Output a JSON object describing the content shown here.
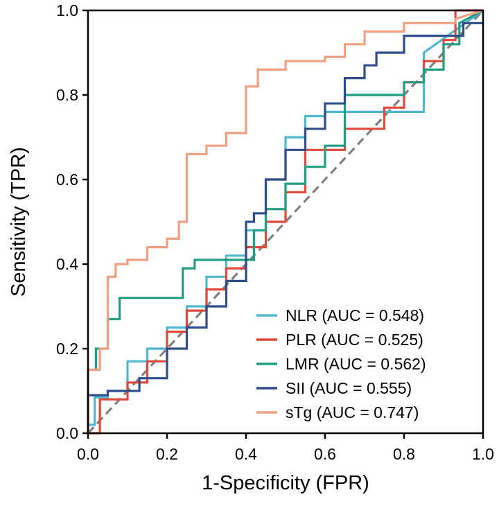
{
  "chart_data": {
    "type": "line",
    "title": "",
    "xlabel": "1-Specificity (FPR)",
    "ylabel": "Sensitivity (TPR)",
    "xlim": [
      0.0,
      1.0
    ],
    "ylim": [
      0.0,
      1.0
    ],
    "xticks": [
      "0.0",
      "0.2",
      "0.4",
      "0.6",
      "0.8",
      "1.0"
    ],
    "yticks": [
      "0.0",
      "0.2",
      "0.4",
      "0.6",
      "0.8",
      "1.0"
    ],
    "grid": false,
    "legend_position": "bottom-right",
    "diagonal": {
      "x": [
        0,
        1
      ],
      "y": [
        0,
        1
      ],
      "color": "#808080",
      "style": "dashed"
    },
    "series": [
      {
        "name": "NLR",
        "legend_label": "NLR (AUC = 0.548)",
        "color": "#4fb8d1",
        "x": [
          0,
          0,
          0.017,
          0.017,
          0.05,
          0.05,
          0.1,
          0.1,
          0.15,
          0.15,
          0.2,
          0.2,
          0.25,
          0.25,
          0.3,
          0.3,
          0.35,
          0.35,
          0.4,
          0.4,
          0.45,
          0.45,
          0.5,
          0.5,
          0.55,
          0.55,
          0.6,
          0.6,
          0.85,
          0.85,
          1.0
        ],
        "y": [
          0,
          0.02,
          0.02,
          0.085,
          0.085,
          0.1,
          0.1,
          0.17,
          0.17,
          0.2,
          0.2,
          0.25,
          0.25,
          0.3,
          0.3,
          0.37,
          0.37,
          0.42,
          0.42,
          0.48,
          0.48,
          0.6,
          0.6,
          0.7,
          0.7,
          0.75,
          0.75,
          0.76,
          0.76,
          0.9,
          1.0
        ]
      },
      {
        "name": "PLR",
        "legend_label": "PLR (AUC = 0.525)",
        "color": "#e0483a",
        "x": [
          0,
          0.03,
          0.03,
          0.1,
          0.1,
          0.15,
          0.15,
          0.2,
          0.2,
          0.25,
          0.25,
          0.3,
          0.3,
          0.35,
          0.35,
          0.4,
          0.4,
          0.45,
          0.45,
          0.5,
          0.5,
          0.55,
          0.55,
          0.65,
          0.65,
          0.75,
          0.75,
          0.8,
          0.8,
          0.85,
          0.85,
          0.9,
          0.9,
          0.93,
          0.93,
          1.0
        ],
        "y": [
          0,
          0,
          0.08,
          0.08,
          0.12,
          0.12,
          0.17,
          0.17,
          0.24,
          0.24,
          0.29,
          0.29,
          0.34,
          0.34,
          0.39,
          0.39,
          0.44,
          0.44,
          0.5,
          0.5,
          0.57,
          0.57,
          0.67,
          0.67,
          0.72,
          0.72,
          0.77,
          0.77,
          0.83,
          0.83,
          0.88,
          0.88,
          0.93,
          0.93,
          1.0,
          1.0
        ]
      },
      {
        "name": "LMR",
        "legend_label": "LMR (AUC = 0.562)",
        "color": "#1f9e82",
        "x": [
          0,
          0,
          0.02,
          0.02,
          0.05,
          0.05,
          0.08,
          0.08,
          0.24,
          0.24,
          0.27,
          0.27,
          0.42,
          0.42,
          0.45,
          0.45,
          0.5,
          0.5,
          0.55,
          0.55,
          0.6,
          0.6,
          0.65,
          0.65,
          0.8,
          0.8,
          0.85,
          0.85,
          0.9,
          0.9,
          0.94,
          0.94,
          1.0
        ],
        "y": [
          0,
          0.15,
          0.15,
          0.2,
          0.2,
          0.27,
          0.27,
          0.32,
          0.32,
          0.39,
          0.39,
          0.41,
          0.41,
          0.48,
          0.48,
          0.53,
          0.53,
          0.59,
          0.59,
          0.63,
          0.63,
          0.68,
          0.68,
          0.8,
          0.8,
          0.83,
          0.83,
          0.86,
          0.86,
          0.92,
          0.92,
          0.97,
          1.0
        ]
      },
      {
        "name": "SII",
        "legend_label": "SII (AUC = 0.555)",
        "color": "#2f4d8a",
        "x": [
          0,
          0,
          0.05,
          0.05,
          0.13,
          0.13,
          0.2,
          0.2,
          0.25,
          0.25,
          0.3,
          0.3,
          0.35,
          0.35,
          0.4,
          0.4,
          0.42,
          0.42,
          0.45,
          0.45,
          0.5,
          0.5,
          0.55,
          0.55,
          0.6,
          0.6,
          0.65,
          0.65,
          0.7,
          0.7,
          0.73,
          0.73,
          0.8,
          0.8,
          0.95,
          0.95,
          1.0
        ],
        "y": [
          0,
          0.09,
          0.09,
          0.1,
          0.1,
          0.13,
          0.13,
          0.2,
          0.2,
          0.25,
          0.25,
          0.3,
          0.3,
          0.36,
          0.36,
          0.5,
          0.5,
          0.52,
          0.52,
          0.6,
          0.6,
          0.67,
          0.67,
          0.72,
          0.72,
          0.78,
          0.78,
          0.84,
          0.84,
          0.87,
          0.87,
          0.9,
          0.9,
          0.94,
          0.94,
          0.97,
          0.97
        ]
      },
      {
        "name": "sTg",
        "legend_label": "sTg (AUC = 0.747)",
        "color": "#f0a081",
        "x": [
          0,
          0,
          0.03,
          0.03,
          0.05,
          0.05,
          0.07,
          0.07,
          0.1,
          0.1,
          0.15,
          0.15,
          0.2,
          0.2,
          0.23,
          0.23,
          0.25,
          0.25,
          0.3,
          0.3,
          0.35,
          0.35,
          0.4,
          0.4,
          0.43,
          0.43,
          0.5,
          0.5,
          0.6,
          0.6,
          0.65,
          0.65,
          0.7,
          0.7,
          0.8,
          0.8,
          0.93,
          0.93,
          1.0
        ],
        "y": [
          0,
          0.15,
          0.15,
          0.2,
          0.2,
          0.37,
          0.37,
          0.4,
          0.4,
          0.41,
          0.41,
          0.44,
          0.44,
          0.46,
          0.46,
          0.5,
          0.5,
          0.66,
          0.66,
          0.68,
          0.68,
          0.71,
          0.71,
          0.82,
          0.82,
          0.86,
          0.86,
          0.88,
          0.88,
          0.89,
          0.89,
          0.92,
          0.92,
          0.95,
          0.95,
          0.97,
          0.97,
          0.98,
          1.0
        ]
      }
    ]
  }
}
